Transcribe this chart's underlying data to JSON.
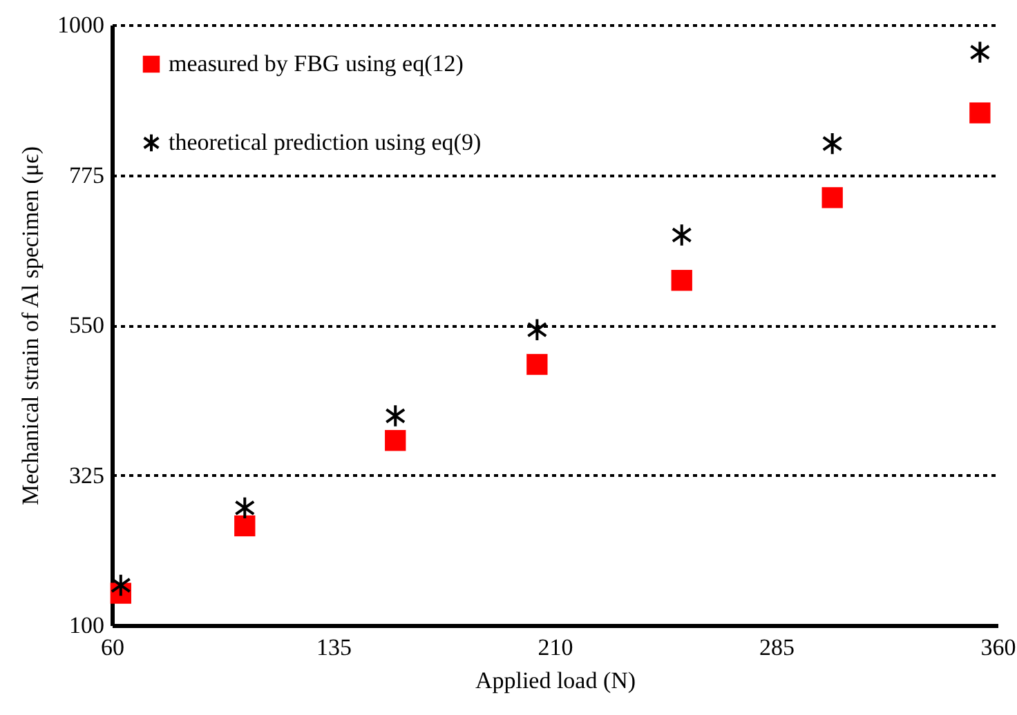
{
  "chart_data": {
    "type": "scatter",
    "xlabel": "Applied load (N)",
    "ylabel": "Mechanical  strain of Al specimen (μϵ)",
    "x": [
      63,
      105,
      156,
      204,
      253,
      304,
      354
    ],
    "series": [
      {
        "name": "measured by FBG using eq(12)",
        "color": "#ff0000",
        "marker": "square",
        "values": [
          148,
          249,
          377,
          491,
          617,
          741,
          868
        ]
      },
      {
        "name": "theoretical prediction using eq(9)",
        "color": "#000000",
        "marker": "cross",
        "values": [
          160,
          276,
          414,
          543,
          685,
          822,
          959
        ]
      }
    ],
    "xlim": [
      60,
      360
    ],
    "xticks": [
      60,
      135,
      210,
      285,
      360
    ],
    "ylim": [
      100,
      1000
    ],
    "yticks": [
      100,
      325,
      550,
      775,
      1000
    ],
    "grid": "y",
    "legend": "top left"
  }
}
